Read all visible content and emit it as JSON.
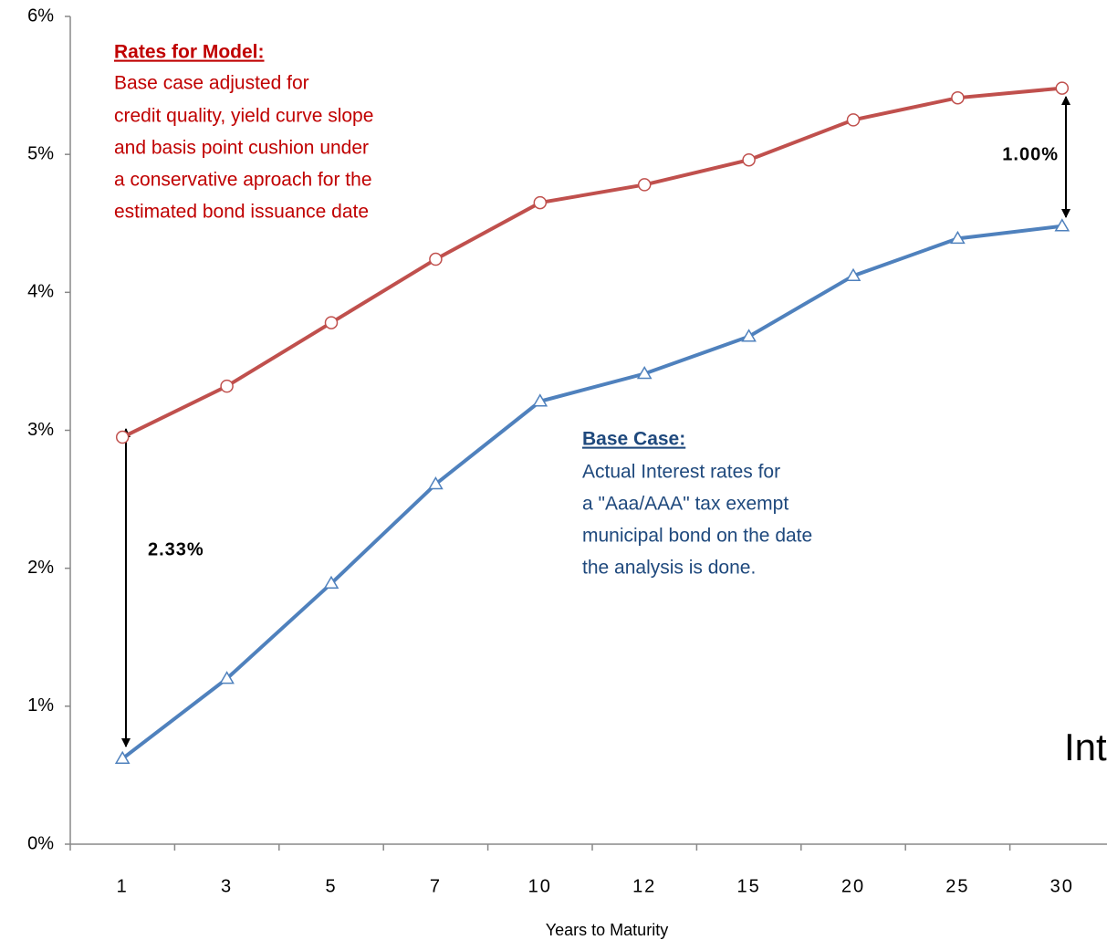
{
  "chart_data": {
    "type": "line",
    "categories": [
      "1",
      "3",
      "5",
      "7",
      "10",
      "12",
      "15",
      "20",
      "25",
      "30"
    ],
    "series": [
      {
        "color": "#c0504d",
        "marker": "circle",
        "values": [
          2.95,
          3.32,
          3.78,
          4.24,
          4.65,
          4.78,
          4.96,
          5.25,
          5.41,
          5.48
        ]
      },
      {
        "color": "#4f81bd",
        "marker": "triangle",
        "values": [
          0.62,
          1.2,
          1.89,
          2.61,
          3.21,
          3.41,
          3.68,
          4.12,
          4.39,
          4.48
        ]
      }
    ],
    "ylim": [
      0,
      6
    ],
    "yticks": [
      {
        "value": 0,
        "label": "0%"
      },
      {
        "value": 1,
        "label": "1%"
      },
      {
        "value": 2,
        "label": "2%"
      },
      {
        "value": 3,
        "label": "3%"
      },
      {
        "value": 4,
        "label": "4%"
      },
      {
        "value": 5,
        "label": "5%"
      },
      {
        "value": 6,
        "label": "6%"
      }
    ],
    "xlabel": "Years to Maturity",
    "annotations": [
      {
        "heading": "Rates for Model:",
        "lines": [
          "Base case adjusted for",
          "credit quality, yield curve slope",
          "and basis point cushion under",
          "a conservative aproach for the",
          "estimated bond issuance date"
        ]
      },
      {
        "heading": "Base Case:",
        "lines": [
          "Actual Interest rates for",
          "a \"Aaa/AAA\" tax exempt",
          "municipal bond on the date",
          "the analysis is done."
        ]
      },
      {
        "text": "2.33%"
      },
      {
        "text": "1.00%"
      },
      {
        "text": "Int"
      }
    ]
  }
}
